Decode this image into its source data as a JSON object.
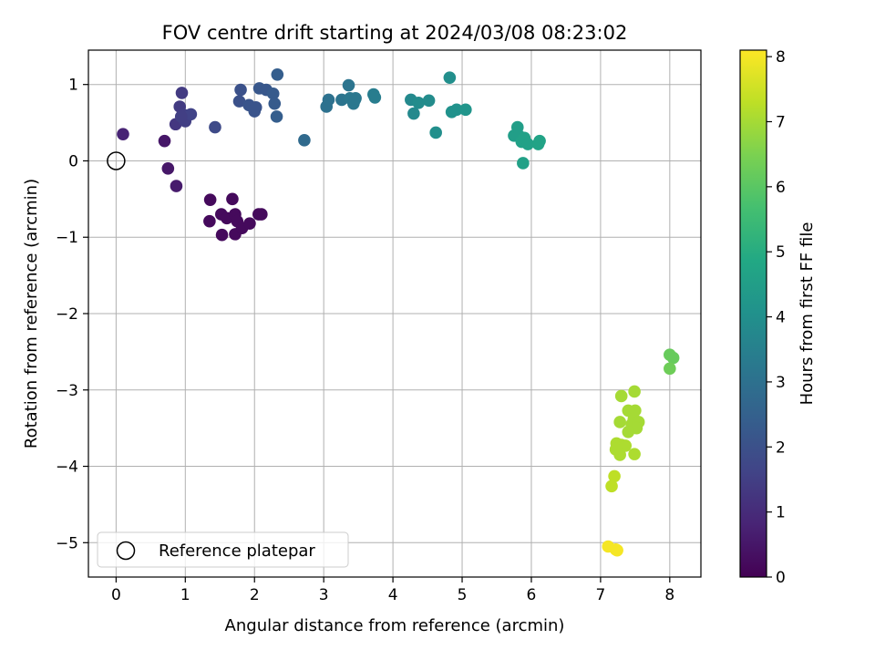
{
  "chart_data": {
    "type": "scatter",
    "title": "FOV centre drift starting at 2024/03/08 08:23:02",
    "xlabel": "Angular distance from reference (arcmin)",
    "ylabel": "Rotation from reference (arcmin)",
    "xlim": [
      -0.4,
      8.45
    ],
    "ylim": [
      -5.45,
      1.45
    ],
    "xticks": [
      "0",
      "1",
      "2",
      "3",
      "4",
      "5",
      "6",
      "7",
      "8"
    ],
    "yticks": [
      "1",
      "0",
      "−1",
      "−2",
      "−3",
      "−4",
      "−5"
    ],
    "grid": true,
    "legend": {
      "placement": "lower-left",
      "entries": [
        "Reference platepar"
      ]
    },
    "reference_point": {
      "x": 0,
      "y": 0
    },
    "colorbar": {
      "label": "Hours from first FF file",
      "range": [
        0,
        8.1
      ],
      "ticks": [
        "0",
        "1",
        "2",
        "3",
        "4",
        "5",
        "6",
        "7",
        "8"
      ],
      "colormap": "viridis"
    },
    "points": [
      {
        "x": 0.1,
        "y": 0.35,
        "t": 0.8
      },
      {
        "x": 0.7,
        "y": 0.26,
        "t": 0.5
      },
      {
        "x": 0.75,
        "y": -0.1,
        "t": 0.5
      },
      {
        "x": 0.87,
        "y": -0.33,
        "t": 0.6
      },
      {
        "x": 0.86,
        "y": 0.48,
        "t": 1.3
      },
      {
        "x": 0.92,
        "y": 0.71,
        "t": 1.4
      },
      {
        "x": 0.95,
        "y": 0.89,
        "t": 1.4
      },
      {
        "x": 0.98,
        "y": 0.6,
        "t": 1.5
      },
      {
        "x": 1.0,
        "y": 0.52,
        "t": 1.5
      },
      {
        "x": 1.08,
        "y": 0.61,
        "t": 1.6
      },
      {
        "x": 0.94,
        "y": 0.58,
        "t": 1.5
      },
      {
        "x": 1.43,
        "y": 0.44,
        "t": 1.8
      },
      {
        "x": 1.36,
        "y": -0.51,
        "t": 0.2
      },
      {
        "x": 1.35,
        "y": -0.79,
        "t": 0.2
      },
      {
        "x": 1.52,
        "y": -0.7,
        "t": 0.2
      },
      {
        "x": 1.6,
        "y": -0.75,
        "t": 0.2
      },
      {
        "x": 1.53,
        "y": -0.97,
        "t": 0.2
      },
      {
        "x": 1.68,
        "y": -0.5,
        "t": 0.2
      },
      {
        "x": 1.72,
        "y": -0.7,
        "t": 0.2
      },
      {
        "x": 1.75,
        "y": -0.79,
        "t": 0.2
      },
      {
        "x": 1.72,
        "y": -0.96,
        "t": 0.2
      },
      {
        "x": 1.82,
        "y": -0.88,
        "t": 0.2
      },
      {
        "x": 1.93,
        "y": -0.82,
        "t": 0.2
      },
      {
        "x": 2.06,
        "y": -0.7,
        "t": 0.2
      },
      {
        "x": 2.1,
        "y": -0.7,
        "t": 0.2
      },
      {
        "x": 1.8,
        "y": 0.93,
        "t": 2.0
      },
      {
        "x": 1.78,
        "y": 0.78,
        "t": 2.0
      },
      {
        "x": 1.92,
        "y": 0.73,
        "t": 2.1
      },
      {
        "x": 2.0,
        "y": 0.65,
        "t": 2.1
      },
      {
        "x": 2.02,
        "y": 0.7,
        "t": 2.1
      },
      {
        "x": 2.07,
        "y": 0.95,
        "t": 2.2
      },
      {
        "x": 2.17,
        "y": 0.93,
        "t": 2.2
      },
      {
        "x": 2.27,
        "y": 0.88,
        "t": 2.3
      },
      {
        "x": 2.29,
        "y": 0.75,
        "t": 2.3
      },
      {
        "x": 2.33,
        "y": 1.13,
        "t": 2.4
      },
      {
        "x": 2.32,
        "y": 0.58,
        "t": 2.4
      },
      {
        "x": 2.72,
        "y": 0.27,
        "t": 2.8
      },
      {
        "x": 3.04,
        "y": 0.71,
        "t": 3.0
      },
      {
        "x": 3.07,
        "y": 0.8,
        "t": 3.0
      },
      {
        "x": 3.26,
        "y": 0.8,
        "t": 3.1
      },
      {
        "x": 3.36,
        "y": 0.99,
        "t": 3.1
      },
      {
        "x": 3.38,
        "y": 0.82,
        "t": 3.2
      },
      {
        "x": 3.43,
        "y": 0.75,
        "t": 3.2
      },
      {
        "x": 3.45,
        "y": 0.8,
        "t": 3.2
      },
      {
        "x": 3.46,
        "y": 0.82,
        "t": 3.2
      },
      {
        "x": 3.72,
        "y": 0.87,
        "t": 3.4
      },
      {
        "x": 3.74,
        "y": 0.83,
        "t": 3.4
      },
      {
        "x": 4.26,
        "y": 0.8,
        "t": 3.8
      },
      {
        "x": 4.3,
        "y": 0.62,
        "t": 3.8
      },
      {
        "x": 4.37,
        "y": 0.76,
        "t": 3.9
      },
      {
        "x": 4.52,
        "y": 0.79,
        "t": 3.9
      },
      {
        "x": 4.62,
        "y": 0.37,
        "t": 4.0
      },
      {
        "x": 4.82,
        "y": 1.09,
        "t": 4.0
      },
      {
        "x": 4.85,
        "y": 0.64,
        "t": 4.1
      },
      {
        "x": 4.92,
        "y": 0.67,
        "t": 4.1
      },
      {
        "x": 5.05,
        "y": 0.67,
        "t": 4.2
      },
      {
        "x": 5.75,
        "y": 0.33,
        "t": 4.5
      },
      {
        "x": 5.8,
        "y": 0.44,
        "t": 4.5
      },
      {
        "x": 5.82,
        "y": 0.33,
        "t": 4.5
      },
      {
        "x": 5.86,
        "y": 0.25,
        "t": 4.6
      },
      {
        "x": 5.88,
        "y": -0.03,
        "t": 4.6
      },
      {
        "x": 5.9,
        "y": 0.3,
        "t": 4.6
      },
      {
        "x": 5.95,
        "y": 0.22,
        "t": 4.6
      },
      {
        "x": 6.1,
        "y": 0.22,
        "t": 4.7
      },
      {
        "x": 6.12,
        "y": 0.26,
        "t": 4.7
      },
      {
        "x": 8.0,
        "y": -2.54,
        "t": 6.2
      },
      {
        "x": 8.05,
        "y": -2.58,
        "t": 6.2
      },
      {
        "x": 8.0,
        "y": -2.72,
        "t": 6.3
      },
      {
        "x": 7.49,
        "y": -3.02,
        "t": 7.0
      },
      {
        "x": 7.3,
        "y": -3.08,
        "t": 7.0
      },
      {
        "x": 7.4,
        "y": -3.27,
        "t": 7.0
      },
      {
        "x": 7.5,
        "y": -3.27,
        "t": 7.0
      },
      {
        "x": 7.48,
        "y": -3.38,
        "t": 7.0
      },
      {
        "x": 7.28,
        "y": -3.42,
        "t": 7.0
      },
      {
        "x": 7.45,
        "y": -3.45,
        "t": 7.0
      },
      {
        "x": 7.55,
        "y": -3.42,
        "t": 7.0
      },
      {
        "x": 7.52,
        "y": -3.5,
        "t": 7.0
      },
      {
        "x": 7.4,
        "y": -3.55,
        "t": 7.0
      },
      {
        "x": 7.23,
        "y": -3.7,
        "t": 7.1
      },
      {
        "x": 7.3,
        "y": -3.72,
        "t": 7.1
      },
      {
        "x": 7.36,
        "y": -3.73,
        "t": 7.1
      },
      {
        "x": 7.22,
        "y": -3.78,
        "t": 7.1
      },
      {
        "x": 7.28,
        "y": -3.85,
        "t": 7.1
      },
      {
        "x": 7.49,
        "y": -3.84,
        "t": 7.1
      },
      {
        "x": 7.2,
        "y": -4.13,
        "t": 7.3
      },
      {
        "x": 7.16,
        "y": -4.26,
        "t": 7.3
      },
      {
        "x": 7.11,
        "y": -5.05,
        "t": 8.0
      },
      {
        "x": 7.22,
        "y": -5.09,
        "t": 8.0
      },
      {
        "x": 7.24,
        "y": -5.1,
        "t": 8.0
      }
    ]
  }
}
